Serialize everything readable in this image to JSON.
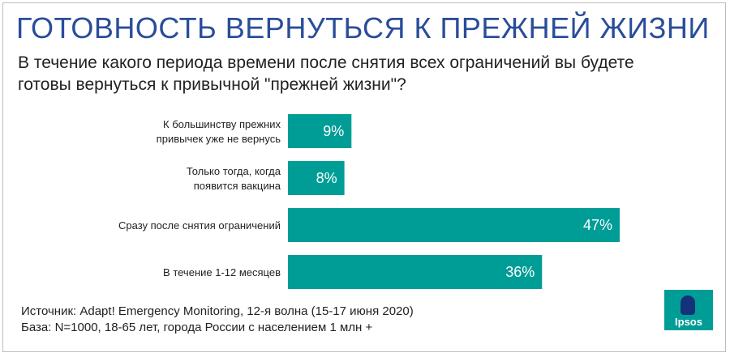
{
  "header": {
    "title": "ГОТОВНОСТЬ ВЕРНУТЬСЯ К ПРЕЖНЕЙ ЖИЗНИ",
    "subtitle_line1": "В течение какого периода времени после снятия всех ограничений вы будете",
    "subtitle_line2": "готовы вернуться к привычной \"прежней жизни\"?"
  },
  "chart_data": {
    "type": "bar",
    "orientation": "horizontal",
    "categories": [
      [
        "К большинству прежних",
        "привычек уже не вернусь"
      ],
      [
        "Только тогда, когда",
        "появится вакцина"
      ],
      [
        "Сразу после снятия ограничений"
      ],
      [
        "В течение 1-12 месяцев"
      ]
    ],
    "values": [
      9,
      8,
      47,
      36
    ],
    "value_labels": [
      "9%",
      "8%",
      "47%",
      "36%"
    ],
    "unit": "%",
    "bar_color": "#009d96",
    "xlim": [
      0,
      47
    ]
  },
  "footer": {
    "source": "Источник: Adapt! Emergency Monitoring, 12-я волна (15-17 июня 2020)",
    "base": "База: N=1000, 18-65 лет, города России с населением 1 млн +"
  },
  "logo": {
    "text": "Ipsos",
    "color": "#009d96",
    "icon": "ipsos-logo-icon"
  },
  "colors": {
    "title": "#2a4d9a",
    "accent": "#009d96"
  }
}
